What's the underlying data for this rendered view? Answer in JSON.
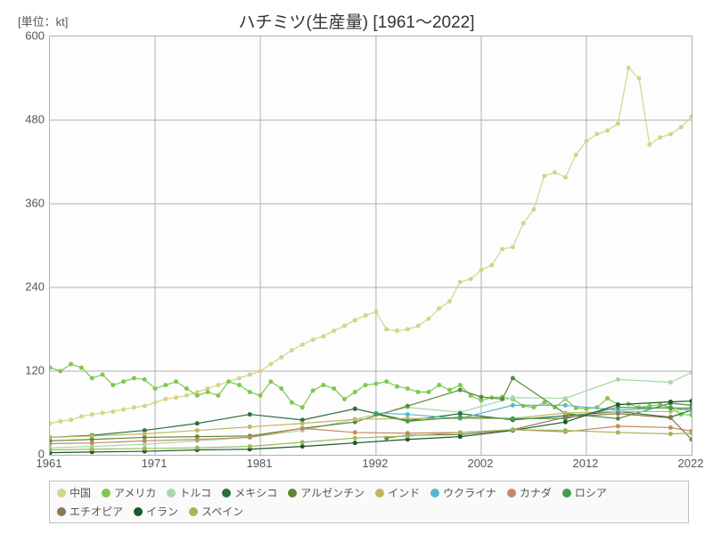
{
  "chart": {
    "type": "line",
    "title": "ハチミツ(生産量) [1961～2022]",
    "unit_label": "[単位：kt]",
    "title_fontsize": 19,
    "label_fontsize": 13,
    "background_color": "#ffffff",
    "plot_background": "#fdfdfd",
    "grid_color": "#b0b0b0",
    "border_color": "#b0b0b0",
    "xlim": [
      1961,
      2022
    ],
    "ylim": [
      0,
      600
    ],
    "ytick_step": 120,
    "xtick_positions": [
      1961,
      1971,
      1981,
      1992,
      2002,
      2012,
      2022
    ],
    "ytick_positions": [
      0,
      120,
      240,
      360,
      480,
      600
    ],
    "marker_size": 2.5,
    "line_width": 1.2,
    "legend_background": "#fafafa",
    "legend_border": "#c0c0c0",
    "series": [
      {
        "name": "中国",
        "color": "#d4d488",
        "years": [
          1961,
          1962,
          1963,
          1964,
          1965,
          1966,
          1967,
          1968,
          1969,
          1970,
          1971,
          1972,
          1973,
          1974,
          1975,
          1976,
          1977,
          1978,
          1979,
          1980,
          1981,
          1982,
          1983,
          1984,
          1985,
          1986,
          1987,
          1988,
          1989,
          1990,
          1991,
          1992,
          1993,
          1994,
          1995,
          1996,
          1997,
          1998,
          1999,
          2000,
          2001,
          2002,
          2003,
          2004,
          2005,
          2006,
          2007,
          2008,
          2009,
          2010,
          2011,
          2012,
          2013,
          2014,
          2015,
          2016,
          2017,
          2018,
          2019,
          2020,
          2021,
          2022
        ],
        "values": [
          45,
          48,
          50,
          55,
          58,
          60,
          62,
          65,
          68,
          70,
          75,
          80,
          82,
          85,
          90,
          95,
          100,
          105,
          110,
          115,
          120,
          130,
          140,
          150,
          158,
          165,
          170,
          178,
          185,
          193,
          200,
          205,
          180,
          178,
          180,
          185,
          195,
          210,
          220,
          248,
          252,
          265,
          272,
          295,
          298,
          332,
          352,
          400,
          405,
          398,
          430,
          450,
          460,
          465,
          475,
          555,
          540,
          445,
          455,
          460,
          470,
          485
        ]
      },
      {
        "name": "アメリカ",
        "color": "#7ec850",
        "years": [
          1961,
          1962,
          1963,
          1964,
          1965,
          1966,
          1967,
          1968,
          1969,
          1970,
          1971,
          1972,
          1973,
          1974,
          1975,
          1976,
          1977,
          1978,
          1979,
          1980,
          1981,
          1982,
          1983,
          1984,
          1985,
          1986,
          1987,
          1988,
          1989,
          1990,
          1991,
          1992,
          1993,
          1994,
          1995,
          1996,
          1997,
          1998,
          1999,
          2000,
          2001,
          2002,
          2003,
          2004,
          2005,
          2006,
          2007,
          2008,
          2009,
          2010,
          2011,
          2012,
          2013,
          2014,
          2015,
          2016,
          2017,
          2018,
          2019,
          2020,
          2021,
          2022
        ],
        "values": [
          125,
          120,
          130,
          125,
          110,
          115,
          100,
          105,
          110,
          108,
          95,
          100,
          105,
          95,
          85,
          90,
          85,
          105,
          100,
          90,
          85,
          105,
          95,
          75,
          68,
          92,
          100,
          95,
          80,
          90,
          100,
          102,
          105,
          98,
          95,
          90,
          90,
          100,
          93,
          100,
          85,
          78,
          82,
          83,
          80,
          70,
          68,
          75,
          68,
          80,
          67,
          66,
          68,
          81,
          72,
          73,
          68,
          70,
          72,
          68,
          58,
          57
        ]
      },
      {
        "name": "トルコ",
        "color": "#a8d8a8",
        "years": [
          1961,
          1965,
          1970,
          1975,
          1980,
          1985,
          1990,
          1995,
          2000,
          2005,
          2010,
          2015,
          2020,
          2022
        ],
        "values": [
          10,
          12,
          15,
          20,
          25,
          35,
          51,
          68,
          61,
          82,
          81,
          108,
          104,
          118
        ]
      },
      {
        "name": "メキシコ",
        "color": "#2a6e3f",
        "years": [
          1961,
          1965,
          1970,
          1975,
          1980,
          1985,
          1990,
          1995,
          2000,
          2005,
          2010,
          2015,
          2020,
          2022
        ],
        "values": [
          25,
          28,
          35,
          45,
          58,
          50,
          66,
          49,
          59,
          50,
          56,
          62,
          54,
          64
        ]
      },
      {
        "name": "アルゼンチン",
        "color": "#5a8a3a",
        "years": [
          1961,
          1965,
          1970,
          1975,
          1980,
          1985,
          1990,
          1995,
          2000,
          2002,
          2004,
          2005,
          2010,
          2015,
          2020,
          2022
        ],
        "values": [
          20,
          22,
          25,
          26,
          27,
          38,
          47,
          70,
          93,
          83,
          80,
          110,
          59,
          52,
          74,
          71
        ]
      },
      {
        "name": "インド",
        "color": "#c0b860",
        "years": [
          1961,
          1965,
          1970,
          1975,
          1980,
          1985,
          1990,
          1995,
          2000,
          2005,
          2010,
          2015,
          2020,
          2022
        ],
        "values": [
          25,
          27,
          30,
          35,
          40,
          45,
          51,
          52,
          52,
          52,
          60,
          62,
          62,
          67
        ]
      },
      {
        "name": "ウクライナ",
        "color": "#5ab4d4",
        "years": [
          1992,
          1995,
          2000,
          2005,
          2010,
          2015,
          2020,
          2022
        ],
        "values": [
          60,
          58,
          52,
          71,
          71,
          64,
          68,
          63
        ]
      },
      {
        "name": "カナダ",
        "color": "#c88860",
        "years": [
          1961,
          1965,
          1970,
          1975,
          1980,
          1985,
          1990,
          1995,
          2000,
          2005,
          2010,
          2015,
          2020,
          2022
        ],
        "values": [
          16,
          17,
          20,
          22,
          25,
          38,
          32,
          31,
          32,
          36,
          33,
          41,
          39,
          34
        ]
      },
      {
        "name": "ロシア",
        "color": "#4a9a4a",
        "years": [
          1992,
          1995,
          2000,
          2005,
          2010,
          2015,
          2020,
          2022
        ],
        "values": [
          58,
          48,
          54,
          52,
          52,
          68,
          67,
          67
        ]
      },
      {
        "name": "エチオピア",
        "color": "#8a7850",
        "years": [
          1993,
          1995,
          2000,
          2005,
          2010,
          2015,
          2020,
          2022
        ],
        "values": [
          24,
          28,
          29,
          36,
          54,
          59,
          53,
          22
        ]
      },
      {
        "name": "イラン",
        "color": "#1a5a2a",
        "years": [
          1961,
          1965,
          1970,
          1975,
          1980,
          1985,
          1990,
          1995,
          2000,
          2005,
          2010,
          2015,
          2020,
          2022
        ],
        "values": [
          3,
          4,
          5,
          7,
          8,
          12,
          17,
          22,
          26,
          35,
          47,
          72,
          76,
          77
        ]
      },
      {
        "name": "スペイン",
        "color": "#9aba5a",
        "years": [
          1961,
          1965,
          1970,
          1975,
          1980,
          1985,
          1990,
          1995,
          2000,
          2005,
          2010,
          2015,
          2020,
          2022
        ],
        "values": [
          7,
          8,
          9,
          10,
          12,
          18,
          24,
          27,
          32,
          36,
          35,
          32,
          30,
          31
        ]
      }
    ]
  }
}
